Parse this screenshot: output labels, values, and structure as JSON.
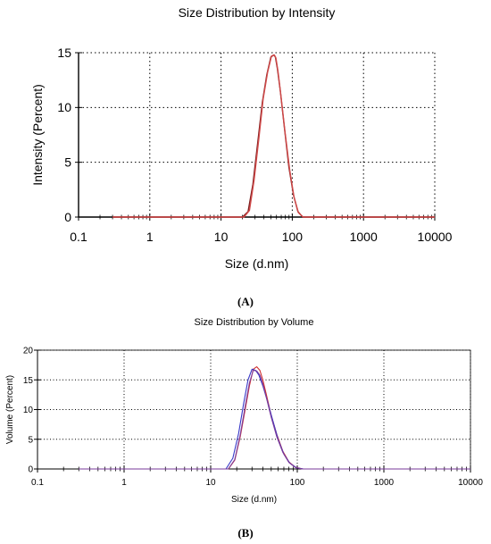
{
  "figure": {
    "caption_a": "(A)",
    "caption_b": "(B)"
  },
  "chart_data": [
    {
      "type": "line",
      "title": "Size Distribution by Intensity",
      "xlabel": "Size (d.nm)",
      "ylabel": "Intensity (Percent)",
      "xscale": "log",
      "xlim": [
        0.1,
        10000
      ],
      "ylim": [
        0,
        15
      ],
      "x_ticks": [
        0.1,
        1,
        10,
        100,
        1000,
        10000
      ],
      "x_tick_labels": [
        "0.1",
        "1",
        "10",
        "100",
        "1000",
        "10000"
      ],
      "y_ticks": [
        0,
        5,
        10,
        15
      ],
      "y_tick_labels": [
        "0",
        "5",
        "10",
        "15"
      ],
      "grid": true,
      "series": [
        {
          "color": "#7a1e1e",
          "x": [
            20,
            24,
            28,
            33,
            38,
            44,
            50,
            55,
            58,
            62,
            68,
            78,
            90,
            104,
            120,
            140,
            160
          ],
          "y": [
            0,
            0.5,
            3,
            7,
            10.5,
            13,
            14.6,
            14.8,
            14.6,
            13.5,
            11.5,
            8,
            4.5,
            2,
            0.5,
            0,
            0
          ]
        },
        {
          "color": "#d04848",
          "x": [
            21,
            25,
            29,
            34,
            39,
            45,
            51,
            56,
            59,
            63,
            69,
            79,
            92,
            106,
            122,
            142,
            160
          ],
          "y": [
            0,
            0.6,
            3.3,
            7.2,
            10.8,
            13.2,
            14.7,
            14.8,
            14.5,
            13.3,
            11.2,
            7.8,
            4.3,
            1.8,
            0.4,
            0,
            0
          ]
        }
      ]
    },
    {
      "type": "line",
      "title": "Size Distribution by Volume",
      "xlabel": "Size (d.nm)",
      "ylabel": "Volume (Percent)",
      "xscale": "log",
      "xlim": [
        0.1,
        10000
      ],
      "ylim": [
        0,
        20
      ],
      "x_ticks": [
        0.1,
        1,
        10,
        100,
        1000,
        10000
      ],
      "x_tick_labels": [
        "0.1",
        "1",
        "10",
        "100",
        "1000",
        "10000"
      ],
      "y_ticks": [
        0,
        5,
        10,
        15,
        20
      ],
      "y_tick_labels": [
        "0",
        "5",
        "10",
        "15",
        "20"
      ],
      "grid": true,
      "series": [
        {
          "color": "#d03030",
          "x": [
            16,
            19,
            22,
            25,
            28,
            31,
            34,
            37,
            40,
            44,
            50,
            58,
            68,
            80,
            95,
            115,
            140
          ],
          "y": [
            0,
            1.5,
            5.5,
            10,
            14,
            16.8,
            17.2,
            16.6,
            15,
            12.5,
            9,
            5.8,
            3,
            1.2,
            0.3,
            0,
            0
          ]
        },
        {
          "color": "#3838c8",
          "x": [
            15,
            18,
            21,
            24,
            27,
            30,
            33,
            36,
            40,
            45,
            52,
            60,
            70,
            82,
            98,
            118,
            140
          ],
          "y": [
            0,
            1.8,
            6,
            11,
            15,
            16.8,
            16.6,
            15.8,
            14,
            11.5,
            8.2,
            5,
            2.5,
            1,
            0.2,
            0,
            0
          ]
        },
        {
          "color": "#7a3a9a",
          "x": [
            16,
            19,
            22,
            25,
            28,
            31,
            34,
            37,
            40,
            44,
            50,
            58,
            68,
            80,
            95,
            115,
            140
          ],
          "y": [
            0,
            1.6,
            5.8,
            10.5,
            14.5,
            16.6,
            16.5,
            15.8,
            14.3,
            12,
            8.7,
            5.4,
            2.8,
            1.1,
            0.25,
            0,
            0
          ]
        }
      ]
    }
  ]
}
